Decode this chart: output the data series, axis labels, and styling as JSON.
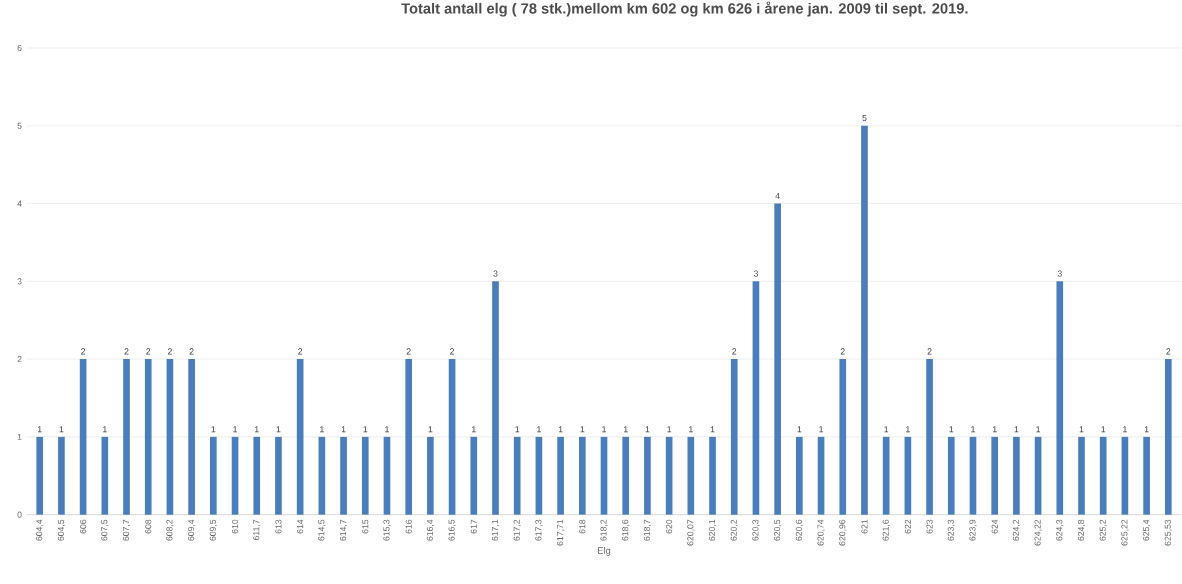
{
  "chart_data": {
    "type": "bar",
    "title": "Totalt antall elg ( 78 stk.)mellom km 602 og km 626 i årene jan. 2009 til sept. 2019.",
    "xlabel": "Elg",
    "categories": [
      "604,4",
      "604,5",
      "606",
      "607,5",
      "607,7",
      "608",
      "608,2",
      "609,4",
      "609,5",
      "610",
      "611,7",
      "613",
      "614",
      "614,5",
      "614,7",
      "615",
      "615,3",
      "616",
      "616,4",
      "616,5",
      "617",
      "617,1",
      "617,2",
      "617,3",
      "617,71",
      "618",
      "618,2",
      "618,6",
      "618,7",
      "620",
      "620,07",
      "620,1",
      "620,2",
      "620,3",
      "620,5",
      "620,6",
      "620,74",
      "620,96",
      "621",
      "621,6",
      "622",
      "623",
      "623,3",
      "623,9",
      "624",
      "624,2",
      "624,22",
      "624,3",
      "624,8",
      "625,2",
      "625,22",
      "625,4",
      "625,53"
    ],
    "values": [
      1,
      1,
      2,
      1,
      2,
      2,
      2,
      2,
      1,
      1,
      1,
      1,
      2,
      1,
      1,
      1,
      1,
      2,
      1,
      2,
      1,
      3,
      1,
      1,
      1,
      1,
      1,
      1,
      1,
      1,
      1,
      1,
      2,
      3,
      4,
      1,
      1,
      2,
      5,
      1,
      1,
      2,
      1,
      1,
      1,
      1,
      1,
      3,
      1,
      1,
      1,
      1,
      2
    ],
    "color": "#4a7ebb",
    "ylim": [
      0,
      6
    ],
    "yticks": [
      0,
      1,
      2,
      3,
      4,
      5,
      6
    ],
    "grid": "y",
    "data_labels": true
  }
}
